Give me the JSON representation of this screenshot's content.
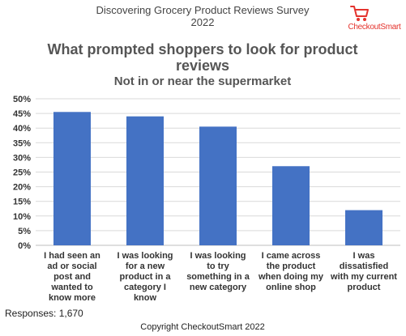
{
  "header": {
    "survey_title": "Discovering Grocery Product Reviews Survey",
    "survey_year": "2022",
    "brand_name": "CheckoutSmart",
    "brand_icon": "shopping-cart-icon",
    "brand_color": "#e4332d"
  },
  "chart_data": {
    "type": "bar",
    "title": "What prompted shoppers to look for product reviews",
    "subtitle": "Not in or near the supermarket",
    "categories": [
      "I had seen an ad or social post and wanted to know more",
      "I was looking for a new product in a category I know",
      "I was looking to try something in a new category",
      "I came across the product when doing my online shop",
      "I was dissatisfied with my current product"
    ],
    "category_lines": [
      [
        "I had seen an",
        "ad or social",
        "post and",
        "wanted to",
        "know more"
      ],
      [
        "I was looking",
        "for a new",
        "product in a",
        "category I",
        "know"
      ],
      [
        "I was looking",
        "to try",
        "something in a",
        "new category"
      ],
      [
        "I came across",
        "the product",
        "when doing my",
        "online shop"
      ],
      [
        "I was",
        "dissatisfied",
        "with my current",
        "product"
      ]
    ],
    "values": [
      45.5,
      44,
      40.5,
      27,
      12
    ],
    "unit": "%",
    "ylim": [
      0,
      50
    ],
    "yticks": [
      0,
      5,
      10,
      15,
      20,
      25,
      30,
      35,
      40,
      45,
      50
    ],
    "ytick_labels": [
      "0%",
      "5%",
      "10%",
      "15%",
      "20%",
      "25%",
      "30%",
      "35%",
      "40%",
      "45%",
      "50%"
    ],
    "grid": true,
    "legend": "none",
    "bar_color": "#4472c4",
    "gridline_color": "#d9d9d9",
    "xlabel": "",
    "ylabel": ""
  },
  "footer": {
    "responses": "Responses: 1,670",
    "copyright": "Copyright CheckoutSmart 2022"
  }
}
